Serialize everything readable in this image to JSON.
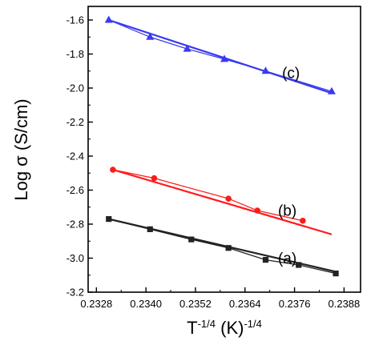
{
  "chart_data": {
    "type": "line",
    "title": "",
    "xlabel_base": "T",
    "xlabel_exp1": "-1/4",
    "xlabel_mid": " (K)",
    "xlabel_exp2": "-1/4",
    "ylabel": "Log σ (S/cm)",
    "xlim": [
      0.2326,
      0.2392
    ],
    "ylim": [
      -3.2,
      -1.52
    ],
    "xticks": [
      {
        "value": 0.2328,
        "label": "0.2328"
      },
      {
        "value": 0.234,
        "label": "0.2340"
      },
      {
        "value": 0.2352,
        "label": "0.2352"
      },
      {
        "value": 0.2364,
        "label": "0.2364"
      },
      {
        "value": 0.2376,
        "label": "0.2376"
      },
      {
        "value": 0.2388,
        "label": "0.2388"
      }
    ],
    "yticks": [
      {
        "value": -1.6,
        "label": "-1.6"
      },
      {
        "value": -1.8,
        "label": "-1.8"
      },
      {
        "value": -2.0,
        "label": "-2.0"
      },
      {
        "value": -2.2,
        "label": "-2.2"
      },
      {
        "value": -2.4,
        "label": "-2.4"
      },
      {
        "value": -2.6,
        "label": "-2.6"
      },
      {
        "value": -2.8,
        "label": "-2.8"
      },
      {
        "value": -3.0,
        "label": "-3.0"
      },
      {
        "value": -3.2,
        "label": "-3.2"
      }
    ],
    "grid": false,
    "series": [
      {
        "tag": "(c)",
        "marker": "triangle",
        "color": "#3a3af0",
        "x": [
          0.2331,
          0.2341,
          0.235,
          0.2359,
          0.2369,
          0.2385
        ],
        "y": [
          -1.6,
          -1.7,
          -1.77,
          -1.83,
          -1.9,
          -2.02
        ],
        "fit": {
          "x": [
            0.2331,
            0.2385
          ],
          "y": [
            -1.6,
            -2.03
          ]
        },
        "tag_pos": {
          "x": 0.2373,
          "y": -1.94
        }
      },
      {
        "tag": "(b)",
        "marker": "circle",
        "color": "#ff1a1a",
        "x": [
          0.2332,
          0.2342,
          0.236,
          0.2367,
          0.2378
        ],
        "y": [
          -2.48,
          -2.53,
          -2.65,
          -2.72,
          -2.78
        ],
        "fit": {
          "x": [
            0.2332,
            0.2385
          ],
          "y": [
            -2.48,
            -2.86
          ]
        },
        "tag_pos": {
          "x": 0.2372,
          "y": -2.75
        }
      },
      {
        "tag": "(a)",
        "marker": "square",
        "color": "#222222",
        "x": [
          0.2331,
          0.2341,
          0.2351,
          0.236,
          0.2369,
          0.2377,
          0.2386
        ],
        "y": [
          -2.77,
          -2.83,
          -2.89,
          -2.94,
          -3.01,
          -3.04,
          -3.09
        ],
        "fit": {
          "x": [
            0.2331,
            0.2386
          ],
          "y": [
            -2.77,
            -3.08
          ]
        },
        "tag_pos": {
          "x": 0.2372,
          "y": -3.03
        }
      }
    ]
  }
}
